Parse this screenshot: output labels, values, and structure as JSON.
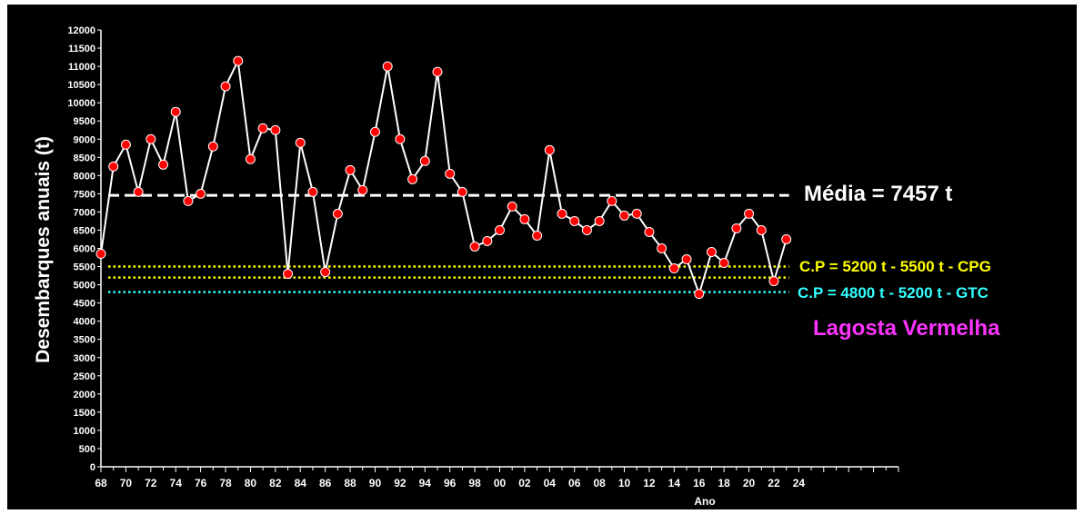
{
  "chart_data": {
    "type": "line",
    "xlabel": "Ano",
    "ylabel": "Desembarques anuais (t)",
    "ylim": [
      0,
      12000
    ],
    "y_ticks": [
      0,
      500,
      1000,
      1500,
      2000,
      2500,
      3000,
      3500,
      4000,
      4500,
      5000,
      5500,
      6000,
      6500,
      7000,
      7500,
      8000,
      8500,
      9000,
      9500,
      10000,
      10500,
      11000,
      11500,
      12000
    ],
    "x_tick_labels": [
      "68",
      "70",
      "72",
      "74",
      "76",
      "78",
      "80",
      "82",
      "84",
      "86",
      "88",
      "90",
      "92",
      "94",
      "96",
      "98",
      "00",
      "02",
      "04",
      "06",
      "08",
      "10",
      "12",
      "14",
      "16",
      "18",
      "20",
      "22",
      "24"
    ],
    "x": [
      1968,
      1969,
      1970,
      1971,
      1972,
      1973,
      1974,
      1975,
      1976,
      1977,
      1978,
      1979,
      1980,
      1981,
      1982,
      1983,
      1984,
      1985,
      1986,
      1987,
      1988,
      1989,
      1990,
      1991,
      1992,
      1993,
      1994,
      1995,
      1996,
      1997,
      1998,
      1999,
      2000,
      2001,
      2002,
      2003,
      2004,
      2005,
      2006,
      2007,
      2008,
      2009,
      2010,
      2011,
      2012,
      2013,
      2014,
      2015,
      2016,
      2017,
      2018,
      2019,
      2020,
      2021,
      2022,
      2023
    ],
    "series": [
      {
        "color": "#ffffff",
        "marker_color": "#ff0000",
        "values": [
          5850,
          8250,
          8850,
          7550,
          9000,
          8300,
          9750,
          7300,
          7500,
          8800,
          10450,
          11150,
          8450,
          9300,
          9250,
          5300,
          8900,
          7550,
          5350,
          6950,
          8150,
          7600,
          9200,
          11000,
          9000,
          7900,
          8400,
          10850,
          8050,
          7550,
          6050,
          6200,
          6500,
          7150,
          6800,
          6350,
          8700,
          6950,
          6750,
          6500,
          6750,
          7300,
          6900,
          6950,
          6450,
          6000,
          5450,
          5700,
          4750,
          5900,
          5600,
          6550,
          6950,
          6500,
          5100,
          6250
        ]
      }
    ],
    "reference_lines": [
      {
        "value": 7457,
        "color": "#ffffff",
        "style": "dashed",
        "label": "Média = 7457 t"
      },
      {
        "value": 5500,
        "color": "#ffff00",
        "style": "dotted",
        "label": "C.P = 5200 t - 5500 t - CPG"
      },
      {
        "value": 5200,
        "color": "#ffff00",
        "style": "dotted",
        "label": ""
      },
      {
        "value": 4800,
        "color": "#33ffff",
        "style": "dotted",
        "label": "C.P = 4800 t - 5200 t - GTC"
      }
    ],
    "annotation": {
      "text": "Lagosta Vermelha",
      "color": "#ff33ff"
    }
  }
}
